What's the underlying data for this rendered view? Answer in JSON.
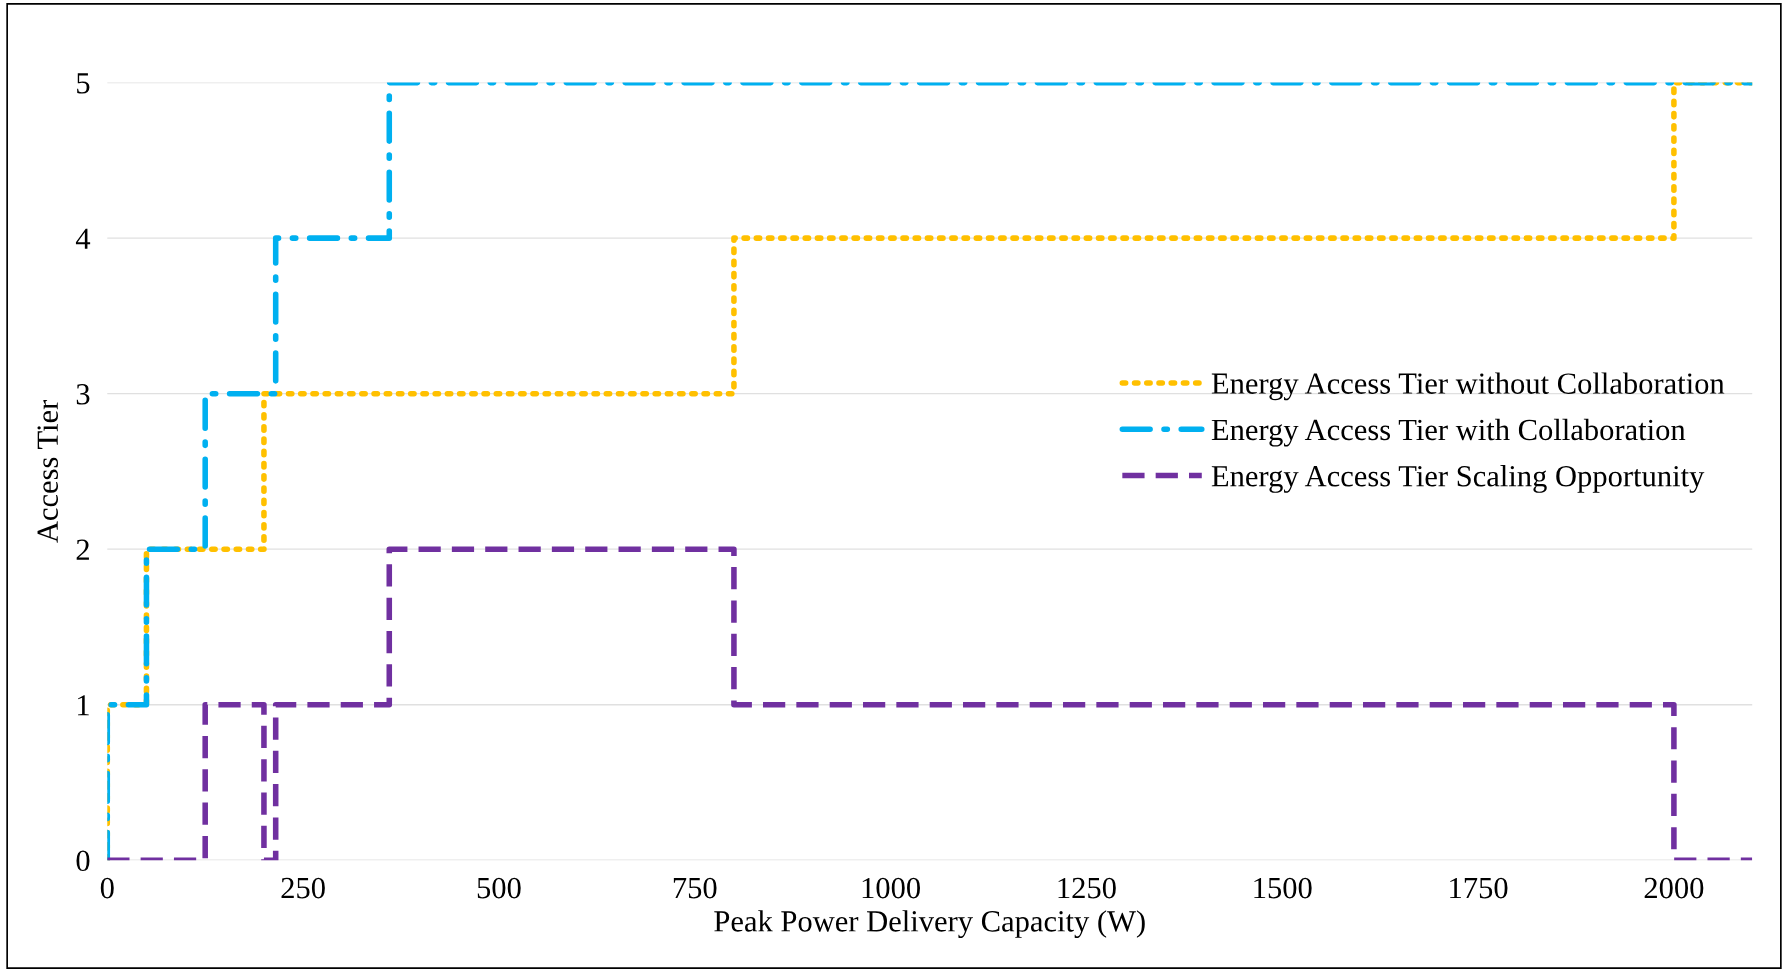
{
  "chart_data": {
    "type": "step",
    "xlabel": "Peak Power Delivery Capacity (W)",
    "ylabel": "Access Tier",
    "xlim": [
      0,
      2100
    ],
    "xticks": [
      0,
      250,
      500,
      750,
      1000,
      1250,
      1500,
      1750,
      2000
    ],
    "ylim": [
      0,
      5
    ],
    "yticks": [
      0,
      1,
      2,
      3,
      4,
      5
    ],
    "grid": "y",
    "legend": "right",
    "series": [
      {
        "name": "Energy Access Tier without Collaboration",
        "color": "#ffc000",
        "line_style": "dotted",
        "x": [
          0,
          0,
          50,
          200,
          800,
          2000,
          2100
        ],
        "values": [
          0,
          1,
          2,
          3,
          4,
          5,
          5
        ]
      },
      {
        "name": "Energy Access Tier with Collaboration",
        "color": "#00b0f0",
        "line_style": "dashdot",
        "x": [
          0,
          0,
          50,
          125,
          215,
          360,
          2100
        ],
        "values": [
          0,
          1,
          2,
          3,
          4,
          5,
          5
        ]
      },
      {
        "name": "Energy Access Tier Scaling Opportunity",
        "color": "#7030a0",
        "line_style": "dashed",
        "x": [
          0,
          125,
          200,
          215,
          360,
          800,
          2000,
          2100
        ],
        "values": [
          0,
          1,
          0,
          1,
          2,
          1,
          0,
          0
        ]
      }
    ]
  }
}
